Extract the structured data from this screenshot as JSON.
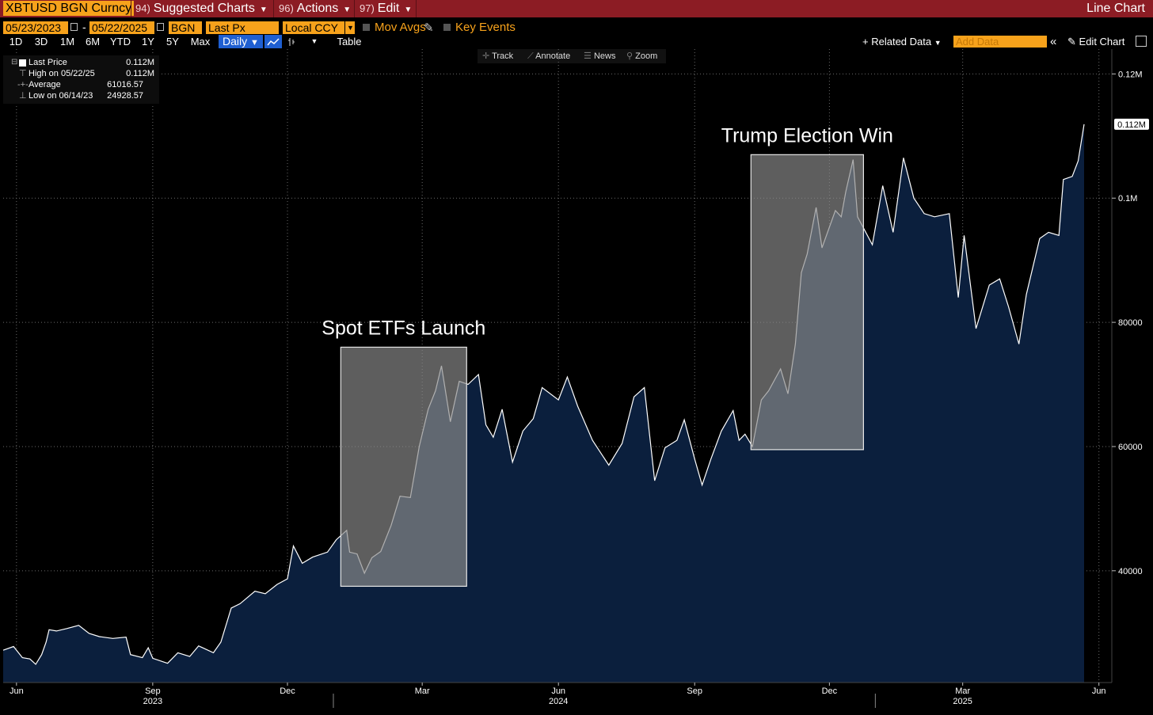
{
  "header": {
    "ticker": "XBTUSD BGN Curncy",
    "menus": [
      {
        "num": "94)",
        "label": "Suggested Charts"
      },
      {
        "num": "96)",
        "label": "Actions"
      },
      {
        "num": "97)",
        "label": "Edit"
      }
    ],
    "chart_type": "Line Chart"
  },
  "controls": {
    "start_date": "05/23/2023",
    "end_date": "05/22/2025",
    "date_dash": "-",
    "source": "BGN",
    "field": "Last Px",
    "currency": "Local CCY",
    "mov_avgs": "Mov Avgs",
    "key_events": "Key Events",
    "periods": [
      "1D",
      "3D",
      "1M",
      "6M",
      "YTD",
      "1Y",
      "5Y",
      "Max"
    ],
    "frequency": "Daily",
    "table": "Table",
    "related_data": "Related Data",
    "add_data": "Add Data",
    "edit_chart": "Edit Chart"
  },
  "tools": [
    "Track",
    "Annotate",
    "News",
    "Zoom"
  ],
  "legend": {
    "rows": [
      {
        "name": "Last Price",
        "value": "0.112M"
      },
      {
        "name": "High on 05/22/25",
        "value": "0.112M"
      },
      {
        "name": "Average",
        "value": "61016.57"
      },
      {
        "name": "Low on 06/14/23",
        "value": "24928.57"
      }
    ]
  },
  "colors": {
    "top_bar": "#8c1c24",
    "accent_orange": "#f7a21b",
    "area_fill": "#0b1f3d",
    "line": "#ffffff",
    "highlight_box": "#8a8a8a"
  },
  "chart_data": {
    "type": "area",
    "x_start": "2023-05-23",
    "x_end": "2025-05-22",
    "ylim": [
      22000,
      124000
    ],
    "y_ticks": [
      {
        "value": 40000,
        "label": "40000"
      },
      {
        "value": 60000,
        "label": "60000"
      },
      {
        "value": 80000,
        "label": "80000"
      },
      {
        "value": 100000,
        "label": "0.1M"
      },
      {
        "value": 120000,
        "label": "0.12M"
      }
    ],
    "last_value_label": "0.112M",
    "x_ticks": [
      {
        "date": "2023-06-01",
        "label": "Jun"
      },
      {
        "date": "2023-09-01",
        "label": "Sep"
      },
      {
        "date": "2023-12-01",
        "label": "Dec"
      },
      {
        "date": "2024-03-01",
        "label": "Mar"
      },
      {
        "date": "2024-06-01",
        "label": "Jun"
      },
      {
        "date": "2024-09-01",
        "label": "Sep"
      },
      {
        "date": "2024-12-01",
        "label": "Dec"
      },
      {
        "date": "2025-03-01",
        "label": "Mar"
      },
      {
        "date": "2025-06-01",
        "label": "Jun"
      }
    ],
    "year_labels": [
      {
        "date": "2023-09-01",
        "label": "2023"
      },
      {
        "date": "2024-06-01",
        "label": "2024"
      },
      {
        "date": "2025-03-01",
        "label": "2025"
      }
    ],
    "year_dividers": [
      "2024-01-01",
      "2025-01-01"
    ],
    "annotations": [
      {
        "label": "Spot ETFs Launch",
        "x0": "2024-01-06",
        "x1": "2024-03-31",
        "y0": 37500,
        "y1": 76000
      },
      {
        "label": "Trump Election Win",
        "x0": "2024-10-09",
        "x1": "2024-12-24",
        "y0": 59500,
        "y1": 107000
      }
    ],
    "series": [
      {
        "name": "Last Price",
        "points": [
          [
            "2023-05-23",
            27200
          ],
          [
            "2023-05-30",
            27800
          ],
          [
            "2023-06-05",
            26000
          ],
          [
            "2023-06-10",
            25800
          ],
          [
            "2023-06-14",
            24928.57
          ],
          [
            "2023-06-18",
            26500
          ],
          [
            "2023-06-21",
            28500
          ],
          [
            "2023-06-23",
            30500
          ],
          [
            "2023-06-28",
            30300
          ],
          [
            "2023-07-05",
            30700
          ],
          [
            "2023-07-13",
            31200
          ],
          [
            "2023-07-20",
            29900
          ],
          [
            "2023-07-27",
            29400
          ],
          [
            "2023-08-05",
            29100
          ],
          [
            "2023-08-14",
            29300
          ],
          [
            "2023-08-17",
            26500
          ],
          [
            "2023-08-25",
            26000
          ],
          [
            "2023-08-29",
            27600
          ],
          [
            "2023-09-01",
            25900
          ],
          [
            "2023-09-11",
            25100
          ],
          [
            "2023-09-18",
            26800
          ],
          [
            "2023-09-26",
            26200
          ],
          [
            "2023-10-02",
            27900
          ],
          [
            "2023-10-12",
            26800
          ],
          [
            "2023-10-17",
            28500
          ],
          [
            "2023-10-24",
            34000
          ],
          [
            "2023-10-30",
            34700
          ],
          [
            "2023-11-09",
            36700
          ],
          [
            "2023-11-16",
            36300
          ],
          [
            "2023-11-24",
            37800
          ],
          [
            "2023-12-01",
            38700
          ],
          [
            "2023-12-05",
            44000
          ],
          [
            "2023-12-11",
            41200
          ],
          [
            "2023-12-18",
            42200
          ],
          [
            "2023-12-28",
            43000
          ],
          [
            "2024-01-03",
            45000
          ],
          [
            "2024-01-10",
            46500
          ],
          [
            "2024-01-12",
            43000
          ],
          [
            "2024-01-17",
            42700
          ],
          [
            "2024-01-22",
            39600
          ],
          [
            "2024-01-27",
            42100
          ],
          [
            "2024-02-02",
            43100
          ],
          [
            "2024-02-09",
            47300
          ],
          [
            "2024-02-15",
            52000
          ],
          [
            "2024-02-22",
            51800
          ],
          [
            "2024-02-28",
            60000
          ],
          [
            "2024-03-05",
            66000
          ],
          [
            "2024-03-10",
            69000
          ],
          [
            "2024-03-14",
            73000
          ],
          [
            "2024-03-20",
            64000
          ],
          [
            "2024-03-26",
            70500
          ],
          [
            "2024-04-01",
            70000
          ],
          [
            "2024-04-08",
            71600
          ],
          [
            "2024-04-13",
            63500
          ],
          [
            "2024-04-18",
            61500
          ],
          [
            "2024-04-24",
            66000
          ],
          [
            "2024-05-01",
            57500
          ],
          [
            "2024-05-08",
            62500
          ],
          [
            "2024-05-15",
            64500
          ],
          [
            "2024-05-21",
            69500
          ],
          [
            "2024-06-01",
            67500
          ],
          [
            "2024-06-07",
            71200
          ],
          [
            "2024-06-14",
            66500
          ],
          [
            "2024-06-24",
            61000
          ],
          [
            "2024-07-05",
            57000
          ],
          [
            "2024-07-14",
            60500
          ],
          [
            "2024-07-22",
            68000
          ],
          [
            "2024-07-29",
            69500
          ],
          [
            "2024-08-05",
            54500
          ],
          [
            "2024-08-12",
            59800
          ],
          [
            "2024-08-20",
            61000
          ],
          [
            "2024-08-25",
            64300
          ],
          [
            "2024-09-01",
            58000
          ],
          [
            "2024-09-06",
            53800
          ],
          [
            "2024-09-12",
            58000
          ],
          [
            "2024-09-19",
            62500
          ],
          [
            "2024-09-27",
            65800
          ],
          [
            "2024-10-01",
            61000
          ],
          [
            "2024-10-05",
            62000
          ],
          [
            "2024-10-10",
            60000
          ],
          [
            "2024-10-16",
            67500
          ],
          [
            "2024-10-21",
            69000
          ],
          [
            "2024-10-29",
            72500
          ],
          [
            "2024-11-03",
            68500
          ],
          [
            "2024-11-08",
            76500
          ],
          [
            "2024-11-12",
            88000
          ],
          [
            "2024-11-16",
            91000
          ],
          [
            "2024-11-22",
            98500
          ],
          [
            "2024-11-26",
            92000
          ],
          [
            "2024-12-05",
            98000
          ],
          [
            "2024-12-09",
            97000
          ],
          [
            "2024-12-12",
            101000
          ],
          [
            "2024-12-17",
            106200
          ],
          [
            "2024-12-20",
            97000
          ],
          [
            "2024-12-30",
            92500
          ],
          [
            "2025-01-06",
            102000
          ],
          [
            "2025-01-13",
            94500
          ],
          [
            "2025-01-20",
            106500
          ],
          [
            "2025-01-27",
            100000
          ],
          [
            "2025-02-03",
            97500
          ],
          [
            "2025-02-10",
            97000
          ],
          [
            "2025-02-20",
            97500
          ],
          [
            "2025-02-26",
            84000
          ],
          [
            "2025-03-02",
            94000
          ],
          [
            "2025-03-10",
            79000
          ],
          [
            "2025-03-19",
            86000
          ],
          [
            "2025-03-26",
            87000
          ],
          [
            "2025-04-01",
            82500
          ],
          [
            "2025-04-08",
            76500
          ],
          [
            "2025-04-13",
            84500
          ],
          [
            "2025-04-22",
            93500
          ],
          [
            "2025-04-28",
            94500
          ],
          [
            "2025-05-05",
            94000
          ],
          [
            "2025-05-08",
            103000
          ],
          [
            "2025-05-14",
            103500
          ],
          [
            "2025-05-18",
            106000
          ],
          [
            "2025-05-22",
            111900
          ]
        ]
      }
    ]
  }
}
